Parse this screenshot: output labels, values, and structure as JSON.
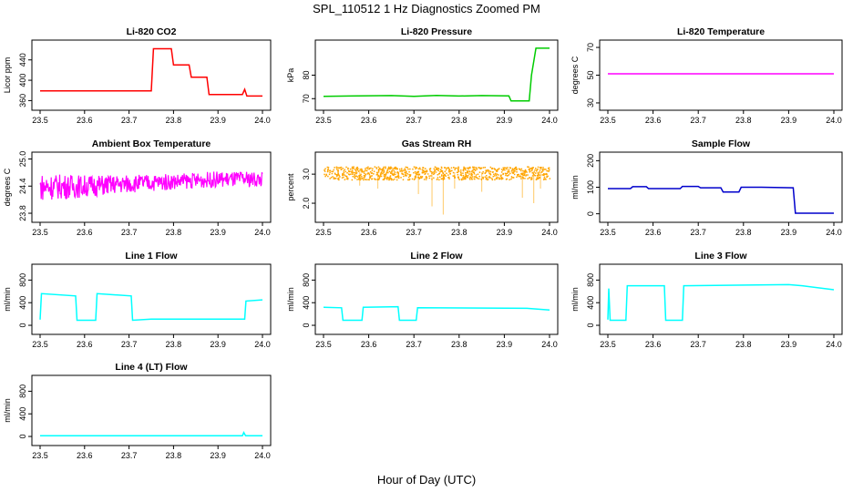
{
  "figure": {
    "title": "SPL_110512  1 Hz Diagnostics Zoomed PM",
    "xlabel": "Hour of Day (UTC)"
  },
  "chart_data": [
    {
      "type": "line",
      "title": "Li-820 CO2",
      "ylabel": "Licor ppm",
      "color": "#ff0000",
      "xlim": [
        23.5,
        24.0
      ],
      "ylim": [
        350,
        470
      ],
      "xticks": [
        "23.5",
        "23.6",
        "23.7",
        "23.8",
        "23.9",
        "24.0"
      ],
      "yticks": [
        "360",
        "400",
        "440"
      ],
      "series": [
        {
          "x": [
            23.5,
            23.75,
            23.755,
            23.795,
            23.8,
            23.835,
            23.84,
            23.875,
            23.88,
            23.955,
            23.96,
            23.965,
            24.0
          ],
          "y": [
            379,
            379,
            462,
            462,
            430,
            430,
            406,
            406,
            372,
            372,
            382,
            369,
            369
          ]
        }
      ]
    },
    {
      "type": "line",
      "title": "Li-820 Pressure",
      "ylabel": "kPa",
      "color": "#00cc00",
      "xlim": [
        23.5,
        24.0
      ],
      "ylim": [
        67,
        93
      ],
      "xticks": [
        "23.5",
        "23.6",
        "23.7",
        "23.8",
        "23.9",
        "24.0"
      ],
      "yticks": [
        "70",
        "80"
      ],
      "series": [
        {
          "x": [
            23.5,
            23.65,
            23.7,
            23.75,
            23.8,
            23.85,
            23.91,
            23.915,
            23.955,
            23.96,
            23.97,
            24.0
          ],
          "y": [
            71,
            71.3,
            71,
            71.4,
            71.1,
            71.3,
            71.2,
            69,
            69,
            80,
            91.5,
            91.5
          ]
        }
      ]
    },
    {
      "type": "line",
      "title": "Li-820 Temperature",
      "ylabel": "degrees C",
      "color": "#ff00ff",
      "xlim": [
        23.5,
        24.0
      ],
      "ylim": [
        28,
        72
      ],
      "xticks": [
        "23.5",
        "23.6",
        "23.7",
        "23.8",
        "23.9",
        "24.0"
      ],
      "yticks": [
        "30",
        "50",
        "70"
      ],
      "series": [
        {
          "x": [
            23.5,
            24.0
          ],
          "y": [
            51,
            51
          ]
        }
      ]
    },
    {
      "type": "line",
      "title": "Ambient Box Temperature",
      "ylabel": "degrees C",
      "color": "#ff00ff",
      "xlim": [
        23.5,
        24.0
      ],
      "ylim": [
        23.7,
        25.05
      ],
      "xticks": [
        "23.5",
        "23.6",
        "23.7",
        "23.8",
        "23.9",
        "24.0"
      ],
      "yticks": [
        "23.8",
        "24.4",
        "25.0"
      ],
      "series": [
        {
          "x": [
            23.5,
            23.6,
            23.7,
            23.8,
            23.9,
            24.0
          ],
          "y": [
            24.38,
            24.4,
            24.45,
            24.5,
            24.55,
            24.55
          ],
          "noise": [
            0.6,
            0.5,
            0.4,
            0.35,
            0.35,
            0.35
          ]
        }
      ]
    },
    {
      "type": "scatter",
      "title": "Gas Stream RH",
      "ylabel": "percent",
      "color": "#ffa500",
      "xlim": [
        23.5,
        24.0
      ],
      "ylim": [
        1.5,
        3.6
      ],
      "xticks": [
        "23.5",
        "23.6",
        "23.7",
        "23.8",
        "23.9",
        "24.0"
      ],
      "yticks": [
        "2.0",
        "3.0"
      ],
      "series": [
        {
          "x": [
            23.5,
            24.0
          ],
          "y": [
            3.05,
            3.05
          ],
          "spikes_x": [
            23.58,
            23.62,
            23.71,
            23.74,
            23.765,
            23.79,
            23.85,
            23.94,
            23.965,
            23.98
          ],
          "spikes_y": [
            2.6,
            2.5,
            2.3,
            1.9,
            1.6,
            2.5,
            2.4,
            2.2,
            2.0,
            2.5
          ]
        }
      ]
    },
    {
      "type": "line",
      "title": "Sample Flow",
      "ylabel": "ml/min",
      "color": "#0000cc",
      "xlim": [
        23.5,
        24.0
      ],
      "ylim": [
        -15,
        215
      ],
      "xticks": [
        "23.5",
        "23.6",
        "23.7",
        "23.8",
        "23.9",
        "24.0"
      ],
      "yticks": [
        "0",
        "100",
        "200"
      ],
      "series": [
        {
          "x": [
            23.5,
            23.55,
            23.555,
            23.585,
            23.59,
            23.66,
            23.665,
            23.7,
            23.705,
            23.75,
            23.755,
            23.79,
            23.795,
            23.84,
            23.91,
            23.915,
            24.0
          ],
          "y": [
            95,
            95,
            102,
            102,
            95,
            95,
            103,
            103,
            98,
            98,
            82,
            82,
            100,
            100,
            98,
            2,
            2
          ]
        }
      ]
    },
    {
      "type": "line",
      "title": "Line 1 Flow",
      "ylabel": "ml/min",
      "color": "#00ffff",
      "xlim": [
        23.5,
        24.0
      ],
      "ylim": [
        -80,
        1000
      ],
      "xticks": [
        "23.5",
        "23.6",
        "23.7",
        "23.8",
        "23.9",
        "24.0"
      ],
      "yticks": [
        "0",
        "400",
        "800"
      ],
      "series": [
        {
          "x": [
            23.5,
            23.503,
            23.58,
            23.583,
            23.625,
            23.628,
            23.705,
            23.708,
            23.75,
            23.96,
            23.963,
            24.0
          ],
          "y": [
            100,
            560,
            520,
            90,
            90,
            560,
            520,
            90,
            110,
            110,
            430,
            450
          ]
        }
      ]
    },
    {
      "type": "line",
      "title": "Line 2 Flow",
      "ylabel": "ml/min",
      "color": "#00ffff",
      "xlim": [
        23.5,
        24.0
      ],
      "ylim": [
        -80,
        1000
      ],
      "xticks": [
        "23.5",
        "23.6",
        "23.7",
        "23.8",
        "23.9",
        "24.0"
      ],
      "yticks": [
        "0",
        "400",
        "800"
      ],
      "series": [
        {
          "x": [
            23.5,
            23.54,
            23.543,
            23.585,
            23.588,
            23.665,
            23.668,
            23.705,
            23.708,
            23.95,
            24.0
          ],
          "y": [
            320,
            310,
            90,
            90,
            320,
            330,
            90,
            90,
            310,
            300,
            270
          ]
        }
      ]
    },
    {
      "type": "line",
      "title": "Line 3 Flow",
      "ylabel": "ml/min",
      "color": "#00ffff",
      "xlim": [
        23.5,
        24.0
      ],
      "ylim": [
        -80,
        1000
      ],
      "xticks": [
        "23.5",
        "23.6",
        "23.7",
        "23.8",
        "23.9",
        "24.0"
      ],
      "yticks": [
        "0",
        "400",
        "800"
      ],
      "series": [
        {
          "x": [
            23.5,
            23.502,
            23.505,
            23.54,
            23.543,
            23.625,
            23.628,
            23.665,
            23.668,
            23.9,
            23.93,
            24.0
          ],
          "y": [
            100,
            650,
            90,
            90,
            700,
            700,
            90,
            90,
            700,
            720,
            700,
            630
          ]
        }
      ]
    },
    {
      "type": "line",
      "title": "Line 4 (LT) Flow",
      "ylabel": "ml/min",
      "color": "#00ffff",
      "xlim": [
        23.5,
        24.0
      ],
      "ylim": [
        -80,
        1000
      ],
      "xticks": [
        "23.5",
        "23.6",
        "23.7",
        "23.8",
        "23.9",
        "24.0"
      ],
      "yticks": [
        "0",
        "400",
        "800"
      ],
      "series": [
        {
          "x": [
            23.5,
            23.955,
            23.958,
            23.962,
            24.0
          ],
          "y": [
            12,
            12,
            70,
            12,
            12
          ]
        }
      ]
    }
  ]
}
